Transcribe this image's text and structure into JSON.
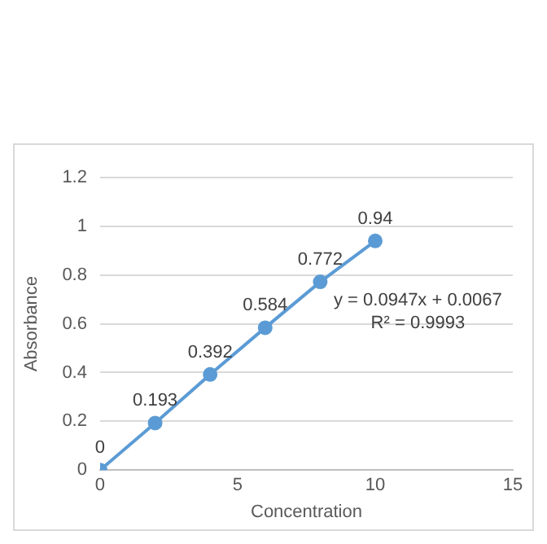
{
  "chart_data": {
    "type": "scatter",
    "xlabel": "Concentration",
    "ylabel": "Absorbance",
    "x": [
      0,
      2,
      4,
      6,
      8,
      10
    ],
    "series": [
      {
        "color": "#5b9bd5",
        "values": [
          0,
          0.193,
          0.392,
          0.584,
          0.772,
          0.94
        ],
        "line_style": "solid"
      }
    ],
    "marker": "circle",
    "data_labels": true,
    "grid": "y",
    "xlim": [
      0,
      15
    ],
    "xticks": [
      0,
      5,
      10,
      15
    ],
    "ylim": [
      0,
      1.2
    ],
    "yticks": [
      0,
      0.2,
      0.4,
      0.6,
      0.8,
      1,
      1.2
    ],
    "annotations": [
      "y = 0.0947x + 0.0067",
      "R² = 0.9993"
    ]
  }
}
